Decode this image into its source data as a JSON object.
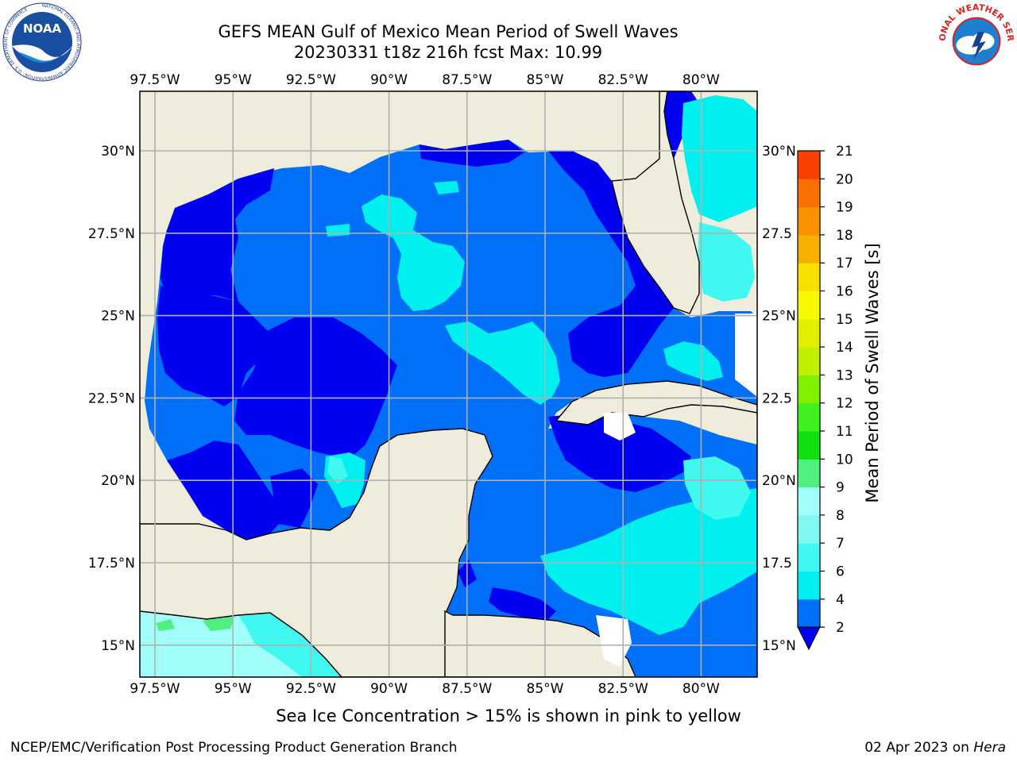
{
  "title": {
    "line1": "GEFS MEAN Gulf of Mexico Mean Period of Swell Waves",
    "line2": "20230331 t18z 216h fcst   Max: 10.99"
  },
  "logos": {
    "left": "noaa-logo",
    "right": "national-weather-service-logo",
    "left_ring_text": "NATIONAL OCEANIC AND ATMOSPHERIC ADMINISTRATION · U.S. DEPARTMENT OF COMMERCE",
    "left_center_text": "NOAA",
    "right_ring_text": "NATIONAL WEATHER SERVICE"
  },
  "map": {
    "longitude_labels": [
      "97.5°W",
      "95°W",
      "92.5°W",
      "90°W",
      "87.5°W",
      "85°W",
      "82.5°W",
      "80°W"
    ],
    "latitude_labels_left": [
      "30°N",
      "27.5°N",
      "25°N",
      "22.5°N",
      "20°N",
      "17.5°N",
      "15°N"
    ],
    "latitude_labels_right": [
      "30°N",
      "27.5",
      "25°N",
      "22.5",
      "20°N",
      "17.5",
      "15°N"
    ],
    "land_color": "#efecdc",
    "grid_color": "#b0b0b0"
  },
  "colorbar": {
    "label": "Mean Period of Swell Waves [s]",
    "ticks": [
      "2",
      "4",
      "6",
      "7",
      "8",
      "9",
      "10",
      "11",
      "12",
      "13",
      "14",
      "15",
      "16",
      "17",
      "18",
      "19",
      "20",
      "21"
    ],
    "colors": [
      "#0070f8",
      "#00f0f0",
      "#40f8f0",
      "#80f8f0",
      "#a0fff8",
      "#50f080",
      "#10e010",
      "#40f020",
      "#80f000",
      "#c0f000",
      "#e0f000",
      "#f8f800",
      "#f8e000",
      "#f8b000",
      "#f89000",
      "#f87000",
      "#f84000",
      "#f80000"
    ],
    "under_color": "#0000f0"
  },
  "ice_note": "Sea Ice Concentration > 15% is shown in pink to yellow",
  "footer": {
    "left": "NCEP/EMC/Verification Post Processing Product Generation Branch",
    "right_prefix": "02 Apr 2023 on ",
    "right_host": "Hera"
  }
}
